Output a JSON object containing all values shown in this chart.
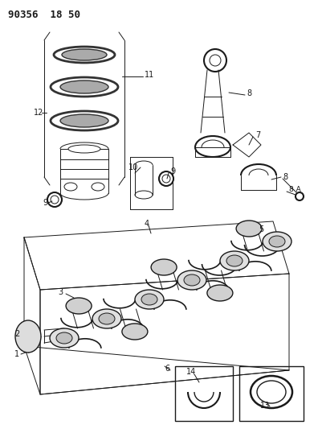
{
  "title": "90356  18 50",
  "bg": "#f5f5f5",
  "lc": "#1a1a1a",
  "lw": 0.7
}
